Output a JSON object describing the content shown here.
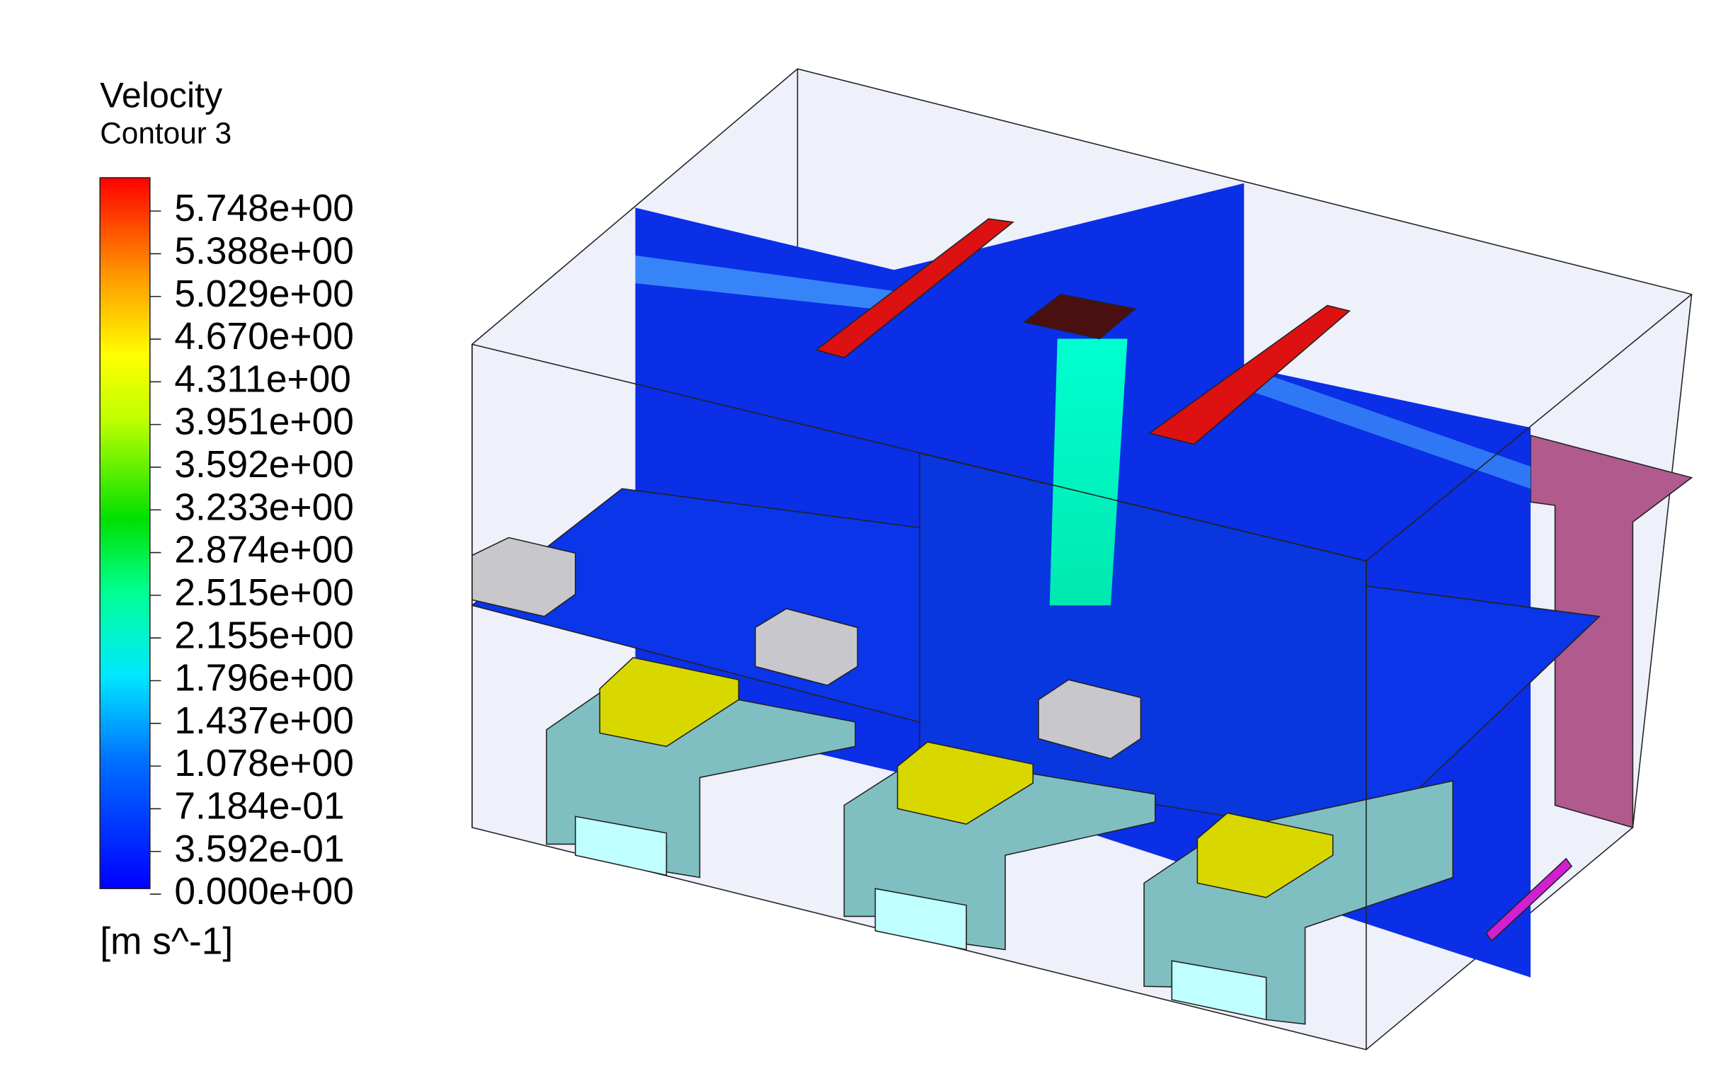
{
  "legend": {
    "title": "Velocity",
    "subtitle": "Contour 3",
    "ticks": [
      "5.748e+00",
      "5.388e+00",
      "5.029e+00",
      "4.670e+00",
      "4.311e+00",
      "3.951e+00",
      "3.592e+00",
      "3.233e+00",
      "2.874e+00",
      "2.515e+00",
      "2.155e+00",
      "1.796e+00",
      "1.437e+00",
      "1.078e+00",
      "7.184e-01",
      "3.592e-01",
      "0.000e+00"
    ],
    "unit": "[m s^-1]"
  }
}
